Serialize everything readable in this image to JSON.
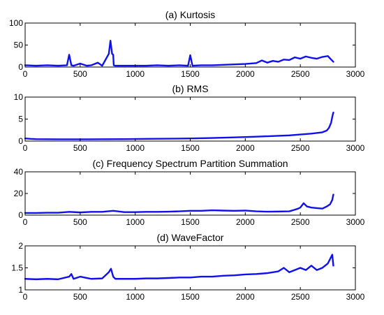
{
  "chart_data": [
    {
      "type": "line",
      "title": "(a) Kurtosis",
      "xlim": [
        0,
        3000
      ],
      "ylim": [
        0,
        100
      ],
      "xticks": [
        0,
        500,
        1000,
        1500,
        2000,
        2500,
        3000
      ],
      "yticks": [
        0,
        50,
        100
      ],
      "line_color": "#1010ee",
      "series": [
        {
          "x": [
            0,
            100,
            200,
            300,
            380,
            400,
            420,
            440,
            500,
            560,
            600,
            660,
            700,
            760,
            775,
            790,
            800,
            805,
            820,
            830,
            900,
            1000,
            1100,
            1200,
            1300,
            1400,
            1480,
            1500,
            1520,
            1600,
            1700,
            1800,
            1900,
            2000,
            2100,
            2150,
            2200,
            2250,
            2300,
            2350,
            2400,
            2450,
            2500,
            2550,
            2600,
            2650,
            2700,
            2750,
            2780,
            2800
          ],
          "y": [
            4,
            3,
            4,
            3,
            4,
            28,
            4,
            3,
            8,
            3,
            4,
            10,
            3,
            30,
            60,
            30,
            28,
            4,
            3,
            3,
            3,
            3,
            3,
            4,
            3,
            4,
            3,
            27,
            3,
            4,
            4,
            5,
            6,
            7,
            9,
            15,
            10,
            14,
            12,
            17,
            16,
            22,
            19,
            24,
            21,
            19,
            23,
            25,
            17,
            12
          ]
        }
      ]
    },
    {
      "type": "line",
      "title": "(b) RMS",
      "xlim": [
        0,
        3000
      ],
      "ylim": [
        0,
        10
      ],
      "xticks": [
        0,
        500,
        1000,
        1500,
        2000,
        2500,
        3000
      ],
      "yticks": [
        0,
        5,
        10
      ],
      "line_color": "#1010ee",
      "series": [
        {
          "x": [
            0,
            50,
            100,
            300,
            500,
            700,
            900,
            1100,
            1300,
            1500,
            1700,
            1900,
            2100,
            2300,
            2400,
            2500,
            2600,
            2700,
            2740,
            2760,
            2780,
            2790,
            2800
          ],
          "y": [
            0.6,
            0.5,
            0.45,
            0.4,
            0.4,
            0.42,
            0.45,
            0.5,
            0.55,
            0.6,
            0.7,
            0.85,
            1.0,
            1.2,
            1.3,
            1.5,
            1.7,
            2.0,
            2.4,
            3.0,
            4.2,
            5.5,
            6.5
          ]
        }
      ]
    },
    {
      "type": "line",
      "title": "(c) Frequency Spectrum Partition Summation",
      "xlim": [
        0,
        3000
      ],
      "ylim": [
        0,
        40
      ],
      "xticks": [
        0,
        500,
        1000,
        1500,
        2000,
        2500,
        3000
      ],
      "yticks": [
        0,
        20,
        40
      ],
      "line_color": "#1010ee",
      "series": [
        {
          "x": [
            0,
            100,
            200,
            300,
            400,
            500,
            600,
            700,
            800,
            900,
            1000,
            1100,
            1200,
            1300,
            1400,
            1500,
            1600,
            1700,
            1800,
            1900,
            2000,
            2100,
            2200,
            2300,
            2400,
            2450,
            2480,
            2500,
            2530,
            2560,
            2600,
            2650,
            2700,
            2740,
            2770,
            2790,
            2800
          ],
          "y": [
            2,
            2,
            2.2,
            2.2,
            3,
            2.5,
            3,
            3,
            4,
            2.8,
            2.8,
            3,
            3,
            3.2,
            3.5,
            4,
            4,
            4.5,
            4.2,
            4,
            4.2,
            3.5,
            3.2,
            3.3,
            3.5,
            5,
            6,
            7,
            11,
            8,
            7,
            6.5,
            6,
            8,
            10,
            14,
            19
          ]
        }
      ]
    },
    {
      "type": "line",
      "title": "(d) WaveFactor",
      "xlim": [
        0,
        3000
      ],
      "ylim": [
        1,
        2
      ],
      "xticks": [
        0,
        500,
        1000,
        1500,
        2000,
        2500,
        3000
      ],
      "yticks": [
        1,
        1.5,
        2
      ],
      "line_color": "#1010ee",
      "series": [
        {
          "x": [
            0,
            100,
            200,
            300,
            400,
            420,
            440,
            500,
            600,
            700,
            760,
            780,
            800,
            820,
            900,
            1000,
            1100,
            1200,
            1300,
            1400,
            1500,
            1600,
            1700,
            1800,
            1900,
            2000,
            2100,
            2200,
            2300,
            2350,
            2400,
            2450,
            2500,
            2550,
            2600,
            2650,
            2700,
            2750,
            2770,
            2790,
            2800
          ],
          "y": [
            1.25,
            1.24,
            1.25,
            1.24,
            1.3,
            1.36,
            1.25,
            1.3,
            1.25,
            1.26,
            1.4,
            1.48,
            1.3,
            1.25,
            1.25,
            1.25,
            1.26,
            1.26,
            1.27,
            1.28,
            1.28,
            1.3,
            1.3,
            1.32,
            1.33,
            1.35,
            1.36,
            1.38,
            1.42,
            1.5,
            1.4,
            1.45,
            1.5,
            1.45,
            1.55,
            1.45,
            1.5,
            1.6,
            1.7,
            1.8,
            1.55
          ]
        }
      ]
    }
  ]
}
